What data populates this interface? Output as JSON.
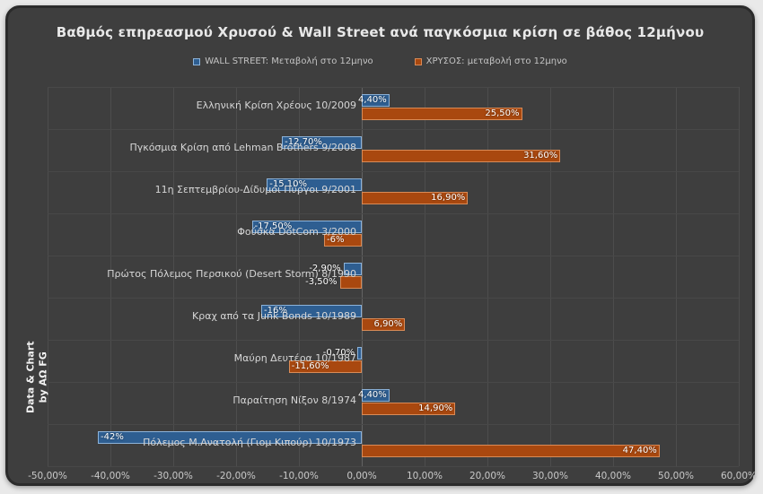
{
  "chart_data": {
    "type": "bar",
    "orientation": "horizontal",
    "title": "Βαθμός επηρεασμού Χρυσού & Wall Street ανά παγκόσμια κρίση σε βάθος 12μήνου",
    "categories": [
      "Ελληνική Κρίση Χρέους 10/2009",
      "Πγκόσμια Κρίση από Lehman Brothers 9/2008",
      "11η Σεπτεμβρίου-Δίδυμοι Πύργοι 9/2001",
      "Φούσκα DotCom 3/2000",
      "Πρώτος Πόλεμος Περσικού (Desert Storm) 8/1990",
      "Κραχ από τα Junk Bonds 10/1989",
      "Μαύρη Δευτέρα 10/1987",
      "Παραίτηση Νίξον 8/1974",
      "Πόλεμος Μ.Ανατολή (Γιομ Κιπούρ) 10/1973"
    ],
    "series": [
      {
        "name": "WALL STREET: Μεταβολή στο 12μηνο",
        "color": "#2e5e91",
        "border_color": "#8db3d9",
        "values": [
          4.4,
          -12.7,
          -15.1,
          -17.5,
          -2.9,
          -16,
          -0.7,
          4.4,
          -42
        ],
        "labels": [
          "4,40%",
          "-12,70%",
          "-15,10%",
          "-17,50%",
          "-2,90%",
          "-16%",
          "-0,70%",
          "4,40%",
          "-42%"
        ]
      },
      {
        "name": "ΧΡΥΣΟΣ: μεταβολή στο 12μηνο",
        "color": "#a9480f",
        "border_color": "#d98b57",
        "values": [
          25.5,
          31.6,
          16.9,
          -6,
          -3.5,
          6.9,
          -11.6,
          14.9,
          47.4
        ],
        "labels": [
          "25,50%",
          "31,60%",
          "16,90%",
          "-6%",
          "-3,50%",
          "6,90%",
          "-11,60%",
          "14,90%",
          "47,40%"
        ]
      }
    ],
    "x_axis": {
      "min": -50,
      "max": 60,
      "tick_step": 10,
      "tick_labels": [
        "-50,00%",
        "-40,00%",
        "-30,00%",
        "-20,00%",
        "-10,00%",
        "0,00%",
        "10,00%",
        "20,00%",
        "30,00%",
        "40,00%",
        "50,00%",
        "60,00%"
      ]
    },
    "grid": true,
    "legend_position": "top"
  },
  "legend": {
    "wallstreet_label": "WALL STREET: Μεταβολή στο 12μηνο",
    "gold_label": "ΧΡΥΣΟΣ: μεταβολή στο 12μηνο"
  },
  "watermark": {
    "line1": "Data & Chart",
    "line2": "by ΑΩ FG"
  },
  "colors": {
    "background": "#3e3e3e",
    "frame_border": "#2b2b2b",
    "wallstreet": "#2e5e91",
    "gold": "#a9480f",
    "gridline": "#4d4d4d",
    "title_text": "#e8e8e8"
  }
}
